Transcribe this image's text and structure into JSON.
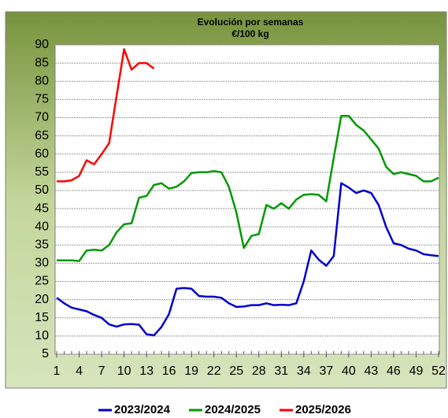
{
  "chart_data": {
    "type": "line",
    "title": "Evolución por semanas",
    "subtitle": "€/100 kg",
    "x": [
      1,
      2,
      3,
      4,
      5,
      6,
      7,
      8,
      9,
      10,
      11,
      12,
      13,
      14,
      15,
      16,
      17,
      18,
      19,
      20,
      21,
      22,
      23,
      24,
      25,
      26,
      27,
      28,
      29,
      30,
      31,
      32,
      33,
      34,
      35,
      36,
      37,
      38,
      39,
      40,
      41,
      42,
      43,
      44,
      45,
      46,
      47,
      48,
      49,
      50,
      51,
      52
    ],
    "xlim": [
      1,
      52
    ],
    "xticks": [
      1,
      4,
      7,
      10,
      13,
      16,
      19,
      22,
      25,
      28,
      31,
      34,
      37,
      40,
      43,
      46,
      49,
      52
    ],
    "ylim": [
      5,
      90
    ],
    "yticks": [
      5,
      10,
      15,
      20,
      25,
      30,
      35,
      40,
      45,
      50,
      55,
      60,
      65,
      70,
      75,
      80,
      85,
      90
    ],
    "grid": true,
    "legend": "bottom",
    "series": [
      {
        "name": "2023/2024",
        "color": "#0000cc",
        "values": [
          20.5,
          19,
          17.8,
          17.3,
          16.8,
          15.8,
          15,
          13.2,
          12.6,
          13.2,
          13.3,
          13.1,
          10.5,
          10.2,
          12.5,
          16,
          23,
          23.2,
          23,
          21,
          20.8,
          20.8,
          20.5,
          19,
          18,
          18.1,
          18.5,
          18.5,
          19,
          18.5,
          18.6,
          18.5,
          19,
          25,
          33.5,
          31,
          29.3,
          32,
          52,
          50.8,
          49.3,
          50,
          49.3,
          46,
          40,
          35.5,
          35,
          34,
          33.5,
          32.5,
          32.2,
          32
        ]
      },
      {
        "name": "2024/2025",
        "color": "#009900",
        "values": [
          30.8,
          30.8,
          30.8,
          30.6,
          33.5,
          33.7,
          33.5,
          35,
          38.5,
          40.7,
          41,
          48,
          48.5,
          51.5,
          52,
          50.5,
          51,
          52.5,
          54.8,
          55,
          55,
          55.3,
          55,
          51,
          44,
          34.2,
          37.5,
          38,
          46,
          45,
          46.5,
          45,
          47.5,
          48.8,
          49,
          48.8,
          47,
          59,
          70.5,
          70.5,
          68,
          66.5,
          64,
          61.5,
          56.5,
          54.5,
          55,
          54.5,
          54,
          52.5,
          52.5,
          53.5
        ]
      },
      {
        "name": "2025/2026",
        "color": "#ff0000",
        "values": [
          52.5,
          52.5,
          52.8,
          54,
          58.3,
          57.2,
          60,
          63,
          76,
          88.8,
          83.2,
          85,
          85,
          83.5,
          null,
          null,
          null,
          null,
          null,
          null,
          null,
          null,
          null,
          null,
          null,
          null,
          null,
          null,
          null,
          null,
          null,
          null,
          null,
          null,
          null,
          null,
          null,
          null,
          null,
          null,
          null,
          null,
          null,
          null,
          null,
          null,
          null,
          null,
          null,
          null,
          null,
          null
        ]
      }
    ]
  }
}
